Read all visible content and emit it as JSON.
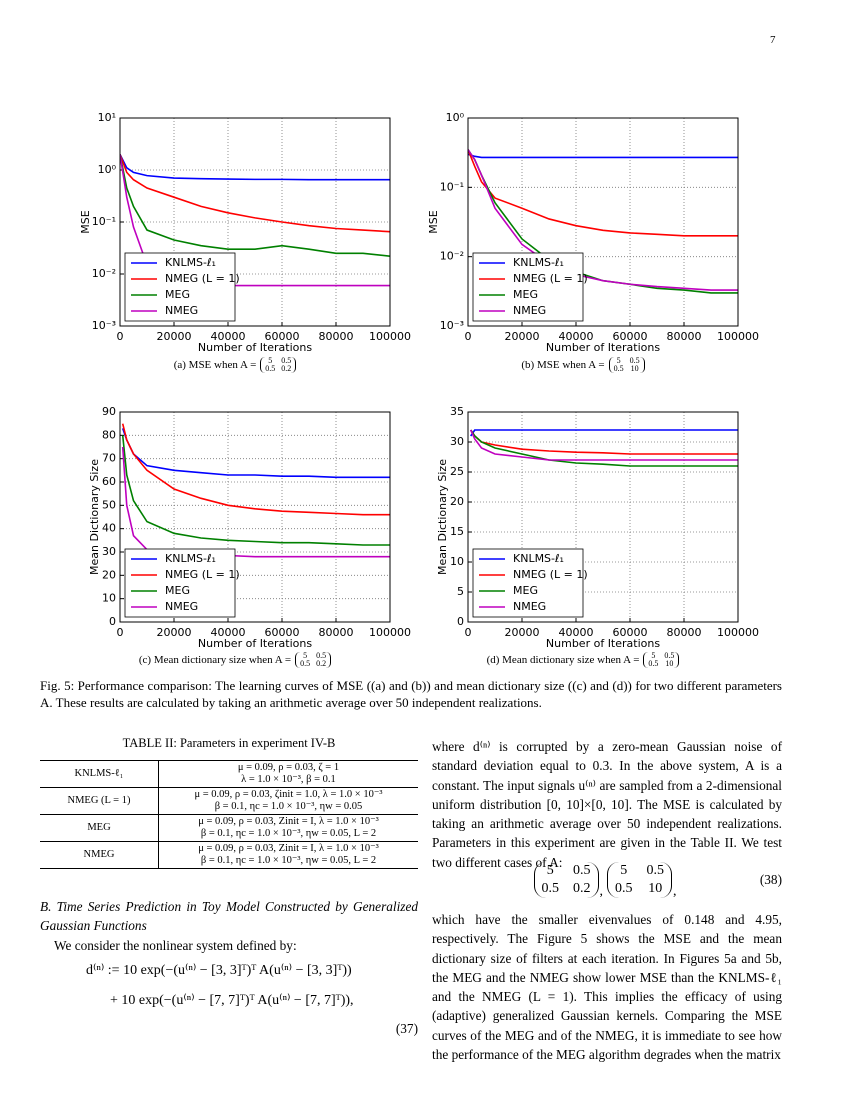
{
  "page_number": "7",
  "chart_data": [
    {
      "type": "line",
      "x_label": "Number of Iterations",
      "y_label": "MSE",
      "y_scale": "log",
      "grid": true,
      "legend": "lower left",
      "x": [
        0,
        2500,
        5000,
        10000,
        20000,
        30000,
        40000,
        50000,
        60000,
        70000,
        80000,
        90000,
        100000
      ],
      "xlim": [
        0,
        100000
      ],
      "xticks": [
        0,
        20000,
        40000,
        60000,
        80000,
        100000
      ],
      "ylim": [
        0.001,
        10
      ],
      "yticks": [
        {
          "value": 0.001,
          "label": "10⁻³"
        },
        {
          "value": 0.01,
          "label": "10⁻²"
        },
        {
          "value": 0.1,
          "label": "10⁻¹"
        },
        {
          "value": 1,
          "label": "10⁰"
        },
        {
          "value": 10,
          "label": "10¹"
        }
      ],
      "series": [
        {
          "name": "KNLMS-ℓ₁",
          "color": "#0000ff",
          "values": [
            2,
            1.1,
            0.9,
            0.78,
            0.7,
            0.68,
            0.67,
            0.66,
            0.66,
            0.65,
            0.65,
            0.65,
            0.65
          ]
        },
        {
          "name": "NMEG (L = 1)",
          "color": "#ff0000",
          "values": [
            2,
            0.9,
            0.65,
            0.45,
            0.3,
            0.2,
            0.15,
            0.12,
            0.1,
            0.085,
            0.075,
            0.07,
            0.065
          ]
        },
        {
          "name": "MEG",
          "color": "#008000",
          "values": [
            2,
            0.45,
            0.2,
            0.07,
            0.045,
            0.035,
            0.03,
            0.03,
            0.035,
            0.03,
            0.025,
            0.025,
            0.022
          ]
        },
        {
          "name": "NMEG",
          "color": "#bf00bf",
          "values": [
            2,
            0.3,
            0.08,
            0.015,
            0.007,
            0.006,
            0.006,
            0.006,
            0.006,
            0.006,
            0.006,
            0.006,
            0.006
          ]
        }
      ]
    },
    {
      "type": "line",
      "x_label": "Number of Iterations",
      "y_label": "MSE",
      "y_scale": "log",
      "grid": true,
      "legend": "lower left",
      "x": [
        0,
        2500,
        5000,
        10000,
        20000,
        30000,
        40000,
        50000,
        60000,
        70000,
        80000,
        90000,
        100000
      ],
      "xlim": [
        0,
        100000
      ],
      "xticks": [
        0,
        20000,
        40000,
        60000,
        80000,
        100000
      ],
      "ylim": [
        0.001,
        1
      ],
      "yticks": [
        {
          "value": 0.001,
          "label": "10⁻³"
        },
        {
          "value": 0.01,
          "label": "10⁻²"
        },
        {
          "value": 0.1,
          "label": "10⁻¹"
        },
        {
          "value": 1,
          "label": "10⁰"
        }
      ],
      "series": [
        {
          "name": "KNLMS-ℓ₁",
          "color": "#0000ff",
          "values": [
            0.3,
            0.28,
            0.27,
            0.27,
            0.27,
            0.27,
            0.27,
            0.27,
            0.27,
            0.27,
            0.27,
            0.27,
            0.27
          ]
        },
        {
          "name": "NMEG (L = 1)",
          "color": "#ff0000",
          "values": [
            0.35,
            0.2,
            0.12,
            0.07,
            0.05,
            0.035,
            0.028,
            0.024,
            0.022,
            0.021,
            0.02,
            0.02,
            0.02
          ]
        },
        {
          "name": "MEG",
          "color": "#008000",
          "values": [
            0.35,
            0.25,
            0.15,
            0.06,
            0.018,
            0.009,
            0.006,
            0.0045,
            0.004,
            0.0035,
            0.0033,
            0.003,
            0.003
          ]
        },
        {
          "name": "NMEG",
          "color": "#bf00bf",
          "values": [
            0.35,
            0.25,
            0.15,
            0.05,
            0.015,
            0.008,
            0.0055,
            0.0045,
            0.004,
            0.0037,
            0.0035,
            0.0033,
            0.0033
          ]
        }
      ]
    },
    {
      "type": "line",
      "x_label": "Number of Iterations",
      "y_label": "Mean Dictionary Size",
      "y_scale": "linear",
      "grid": true,
      "legend": "lower left",
      "x": [
        1000,
        2500,
        5000,
        10000,
        20000,
        30000,
        40000,
        50000,
        60000,
        70000,
        80000,
        90000,
        100000
      ],
      "xlim": [
        0,
        100000
      ],
      "xticks": [
        0,
        20000,
        40000,
        60000,
        80000,
        100000
      ],
      "ylim": [
        0,
        90
      ],
      "yticks": [
        0,
        10,
        20,
        30,
        40,
        50,
        60,
        70,
        80,
        90
      ],
      "series": [
        {
          "name": "KNLMS-ℓ₁",
          "color": "#0000ff",
          "values": [
            83,
            78,
            72,
            67,
            65,
            64,
            63,
            63,
            62.5,
            62.5,
            62,
            62,
            62
          ]
        },
        {
          "name": "NMEG (L = 1)",
          "color": "#ff0000",
          "values": [
            85,
            78,
            72,
            65,
            57,
            53,
            50,
            48.5,
            47.5,
            47,
            46.5,
            46,
            46
          ]
        },
        {
          "name": "MEG",
          "color": "#008000",
          "values": [
            80,
            63,
            52,
            43,
            38,
            36,
            35,
            34.5,
            34,
            34,
            33.5,
            33,
            33
          ]
        },
        {
          "name": "NMEG",
          "color": "#bf00bf",
          "values": [
            75,
            50,
            37,
            31,
            29,
            28.5,
            28.5,
            28,
            28,
            28,
            28,
            28,
            28
          ]
        }
      ]
    },
    {
      "type": "line",
      "x_label": "Number of Iterations",
      "y_label": "Mean Dictionary Size",
      "y_scale": "linear",
      "grid": true,
      "legend": "lower left",
      "x": [
        1000,
        2500,
        5000,
        10000,
        20000,
        30000,
        40000,
        50000,
        60000,
        70000,
        80000,
        90000,
        100000
      ],
      "xlim": [
        0,
        100000
      ],
      "xticks": [
        0,
        20000,
        40000,
        60000,
        80000,
        100000
      ],
      "ylim": [
        0,
        35
      ],
      "yticks": [
        0,
        5,
        10,
        15,
        20,
        25,
        30,
        35
      ],
      "series": [
        {
          "name": "KNLMS-ℓ₁",
          "color": "#0000ff",
          "values": [
            31,
            32,
            32,
            32,
            32,
            32,
            32,
            32,
            32,
            32,
            32,
            32,
            32
          ]
        },
        {
          "name": "NMEG (L = 1)",
          "color": "#ff0000",
          "values": [
            32,
            31,
            30,
            29.5,
            28.8,
            28.5,
            28.3,
            28.2,
            28,
            28,
            28,
            28,
            28
          ]
        },
        {
          "name": "MEG",
          "color": "#008000",
          "values": [
            32,
            31,
            30,
            29,
            28,
            27,
            26.5,
            26.3,
            26,
            26,
            26,
            26,
            26
          ]
        },
        {
          "name": "NMEG",
          "color": "#bf00bf",
          "values": [
            32,
            30.5,
            29,
            28,
            27.5,
            27,
            27,
            27,
            27,
            27,
            27,
            27,
            27
          ]
        }
      ]
    }
  ],
  "subcaptions": [
    {
      "text": "(a) MSE when A =",
      "matrix": [
        [
          "5",
          "0.5"
        ],
        [
          "0.5",
          "0.2"
        ]
      ]
    },
    {
      "text": "(b) MSE when A =",
      "matrix": [
        [
          "5",
          "0.5"
        ],
        [
          "0.5",
          "10"
        ]
      ]
    },
    {
      "text": "(c) Mean dictionary size when A =",
      "matrix": [
        [
          "5",
          "0.5"
        ],
        [
          "0.5",
          "0.2"
        ]
      ]
    },
    {
      "text": "(d) Mean dictionary size when A =",
      "matrix": [
        [
          "5",
          "0.5"
        ],
        [
          "0.5",
          "10"
        ]
      ]
    }
  ],
  "figure_caption": "Fig. 5: Performance comparison: The learning curves of MSE ((a) and (b)) and mean dictionary size ((c) and (d)) for two different parameters A. These results are calculated by taking an arithmetic average over 50 independent realizations.",
  "table": {
    "title": "TABLE II: Parameters in experiment IV-B",
    "rows": [
      {
        "name": "KNLMS-ℓ₁",
        "params": [
          "μ = 0.09,  ρ = 0.03,  ζ = 1",
          "λ = 1.0 × 10⁻³,  β = 0.1"
        ]
      },
      {
        "name": "NMEG (L = 1)",
        "params": [
          "μ = 0.09,  ρ = 0.03,  ζinit = 1.0,  λ = 1.0 × 10⁻³",
          "β = 0.1,  ηc = 1.0 × 10⁻³,  ηw = 0.05"
        ]
      },
      {
        "name": "MEG",
        "params": [
          "μ = 0.09,  ρ = 0.03,  Zinit = I, λ = 1.0 × 10⁻³",
          "β = 0.1,  ηc = 1.0 × 10⁻³,  ηw = 0.05,  L = 2"
        ]
      },
      {
        "name": "NMEG",
        "params": [
          "μ = 0.09,  ρ = 0.03,  Zinit = I, λ = 1.0 × 10⁻³",
          "β = 0.1,  ηc = 1.0 × 10⁻³,  ηw = 0.05,  L = 2"
        ]
      }
    ]
  },
  "section_heading": "B. Time Series Prediction in Toy Model Constructed by Generalized Gaussian Functions",
  "left_paragraph": "We consider the nonlinear system defined by:",
  "equation_37": {
    "lines": [
      "d⁽ⁿ⁾ := 10 exp(−(u⁽ⁿ⁾ − [3, 3]ᵀ)ᵀ A(u⁽ⁿ⁾ − [3, 3]ᵀ))",
      "+ 10 exp(−(u⁽ⁿ⁾ − [7, 7]ᵀ)ᵀ A(u⁽ⁿ⁾ − [7, 7]ᵀ)),"
    ],
    "number": "(37)"
  },
  "right_paragraph_1": "where d⁽ⁿ⁾ is corrupted by a zero-mean Gaussian noise of standard deviation equal to 0.3. In the above system, A is a constant. The input signals u⁽ⁿ⁾ are sampled from a 2-dimensional uniform distribution [0, 10]×[0, 10]. The MSE is calculated by taking an arithmetic average over 50 independent realizations. Parameters in this experiment are given in the Table II. We test two different cases of A:",
  "equation_38": {
    "matrices": [
      [
        [
          "5",
          "0.5"
        ],
        [
          "0.5",
          "0.2"
        ]
      ],
      [
        [
          "5",
          "0.5"
        ],
        [
          "0.5",
          "10"
        ]
      ]
    ],
    "separator": ",",
    "end": ",",
    "number": "(38)"
  },
  "right_paragraph_2": "which have the smaller eivenvalues of 0.148 and 4.95, respectively. The Figure 5 shows the MSE and the mean dictionary size of filters at each iteration. In Figures 5a and 5b, the MEG and the NMEG show lower MSE than the KNLMS-ℓ₁ and the NMEG (L = 1). This implies the efficacy of using (adaptive) generalized Gaussian kernels. Comparing the MSE curves of the MEG and of the NMEG, it is immediate to see how the performance of the MEG algorithm degrades when the matrix"
}
